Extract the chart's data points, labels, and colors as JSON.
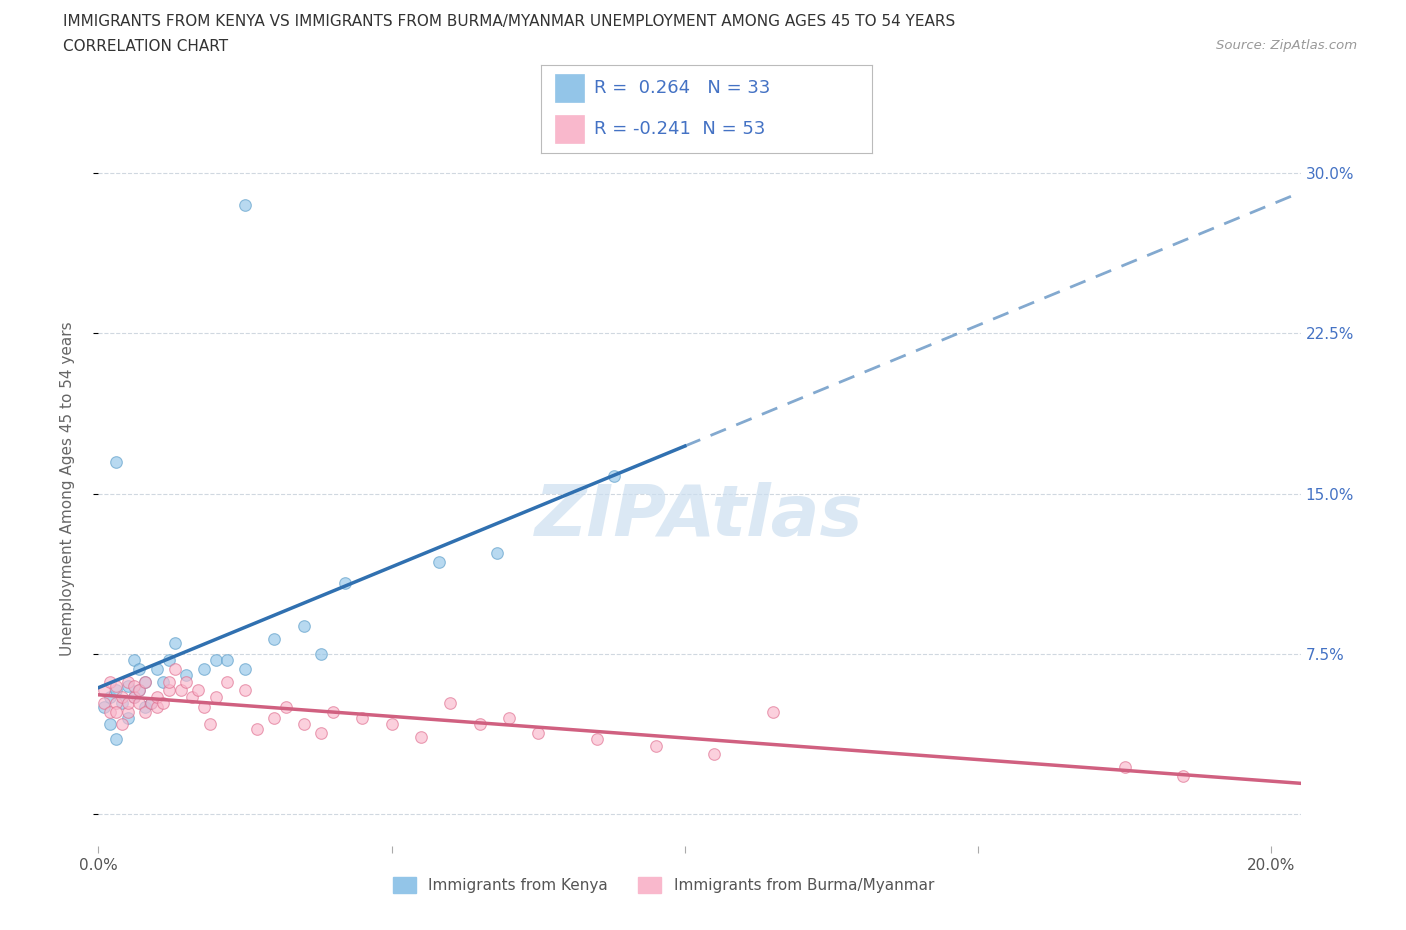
{
  "title": "IMMIGRANTS FROM KENYA VS IMMIGRANTS FROM BURMA/MYANMAR UNEMPLOYMENT AMONG AGES 45 TO 54 YEARS",
  "subtitle": "CORRELATION CHART",
  "source": "Source: ZipAtlas.com",
  "ylabel": "Unemployment Among Ages 45 to 54 years",
  "xlim": [
    0.0,
    0.205
  ],
  "ylim": [
    -0.015,
    0.32
  ],
  "xlim_display": [
    0.0,
    0.2
  ],
  "yticks": [
    0.0,
    0.075,
    0.15,
    0.225,
    0.3
  ],
  "yticklabels_right": [
    "",
    "7.5%",
    "15.0%",
    "22.5%",
    "30.0%"
  ],
  "xtick_positions": [
    0.0,
    0.05,
    0.1,
    0.15,
    0.2
  ],
  "xticklabels": [
    "0.0%",
    "",
    "",
    "",
    "20.0%"
  ],
  "kenya_color": "#93c5e8",
  "kenya_edge": "#5b9dc9",
  "burma_color": "#f9b8cc",
  "burma_edge": "#e07090",
  "kenya_R": 0.264,
  "kenya_N": 33,
  "burma_R": -0.241,
  "burma_N": 53,
  "trend_kenya_color": "#3070b0",
  "trend_burma_color": "#d06080",
  "watermark": "ZIPAtlas",
  "watermark_color": "#ccdff0",
  "background_color": "#ffffff",
  "grid_color": "#d0d8e0",
  "legend_text_color": "#4472c4",
  "kenya_x": [
    0.001,
    0.002,
    0.002,
    0.003,
    0.003,
    0.004,
    0.005,
    0.005,
    0.006,
    0.006,
    0.007,
    0.007,
    0.008,
    0.008,
    0.009,
    0.01,
    0.011,
    0.012,
    0.013,
    0.015,
    0.018,
    0.02,
    0.022,
    0.025,
    0.03,
    0.035,
    0.038,
    0.042,
    0.058,
    0.068,
    0.088,
    0.025,
    0.003
  ],
  "kenya_y": [
    0.05,
    0.042,
    0.055,
    0.058,
    0.035,
    0.052,
    0.045,
    0.06,
    0.055,
    0.072,
    0.068,
    0.058,
    0.062,
    0.05,
    0.052,
    0.068,
    0.062,
    0.072,
    0.08,
    0.065,
    0.068,
    0.072,
    0.072,
    0.068,
    0.082,
    0.088,
    0.075,
    0.108,
    0.118,
    0.122,
    0.158,
    0.285,
    0.165
  ],
  "burma_x": [
    0.001,
    0.001,
    0.002,
    0.002,
    0.003,
    0.003,
    0.003,
    0.004,
    0.004,
    0.005,
    0.005,
    0.005,
    0.006,
    0.006,
    0.007,
    0.007,
    0.008,
    0.008,
    0.009,
    0.01,
    0.01,
    0.011,
    0.012,
    0.012,
    0.013,
    0.014,
    0.015,
    0.016,
    0.017,
    0.018,
    0.019,
    0.02,
    0.022,
    0.025,
    0.027,
    0.03,
    0.032,
    0.035,
    0.038,
    0.04,
    0.045,
    0.05,
    0.055,
    0.06,
    0.065,
    0.07,
    0.075,
    0.085,
    0.095,
    0.105,
    0.115,
    0.175,
    0.185
  ],
  "burma_y": [
    0.052,
    0.058,
    0.048,
    0.062,
    0.052,
    0.048,
    0.06,
    0.042,
    0.055,
    0.048,
    0.052,
    0.062,
    0.055,
    0.06,
    0.052,
    0.058,
    0.048,
    0.062,
    0.052,
    0.05,
    0.055,
    0.052,
    0.058,
    0.062,
    0.068,
    0.058,
    0.062,
    0.055,
    0.058,
    0.05,
    0.042,
    0.055,
    0.062,
    0.058,
    0.04,
    0.045,
    0.05,
    0.042,
    0.038,
    0.048,
    0.045,
    0.042,
    0.036,
    0.052,
    0.042,
    0.045,
    0.038,
    0.035,
    0.032,
    0.028,
    0.048,
    0.022,
    0.018
  ],
  "marker_size": 70,
  "marker_alpha": 0.65
}
